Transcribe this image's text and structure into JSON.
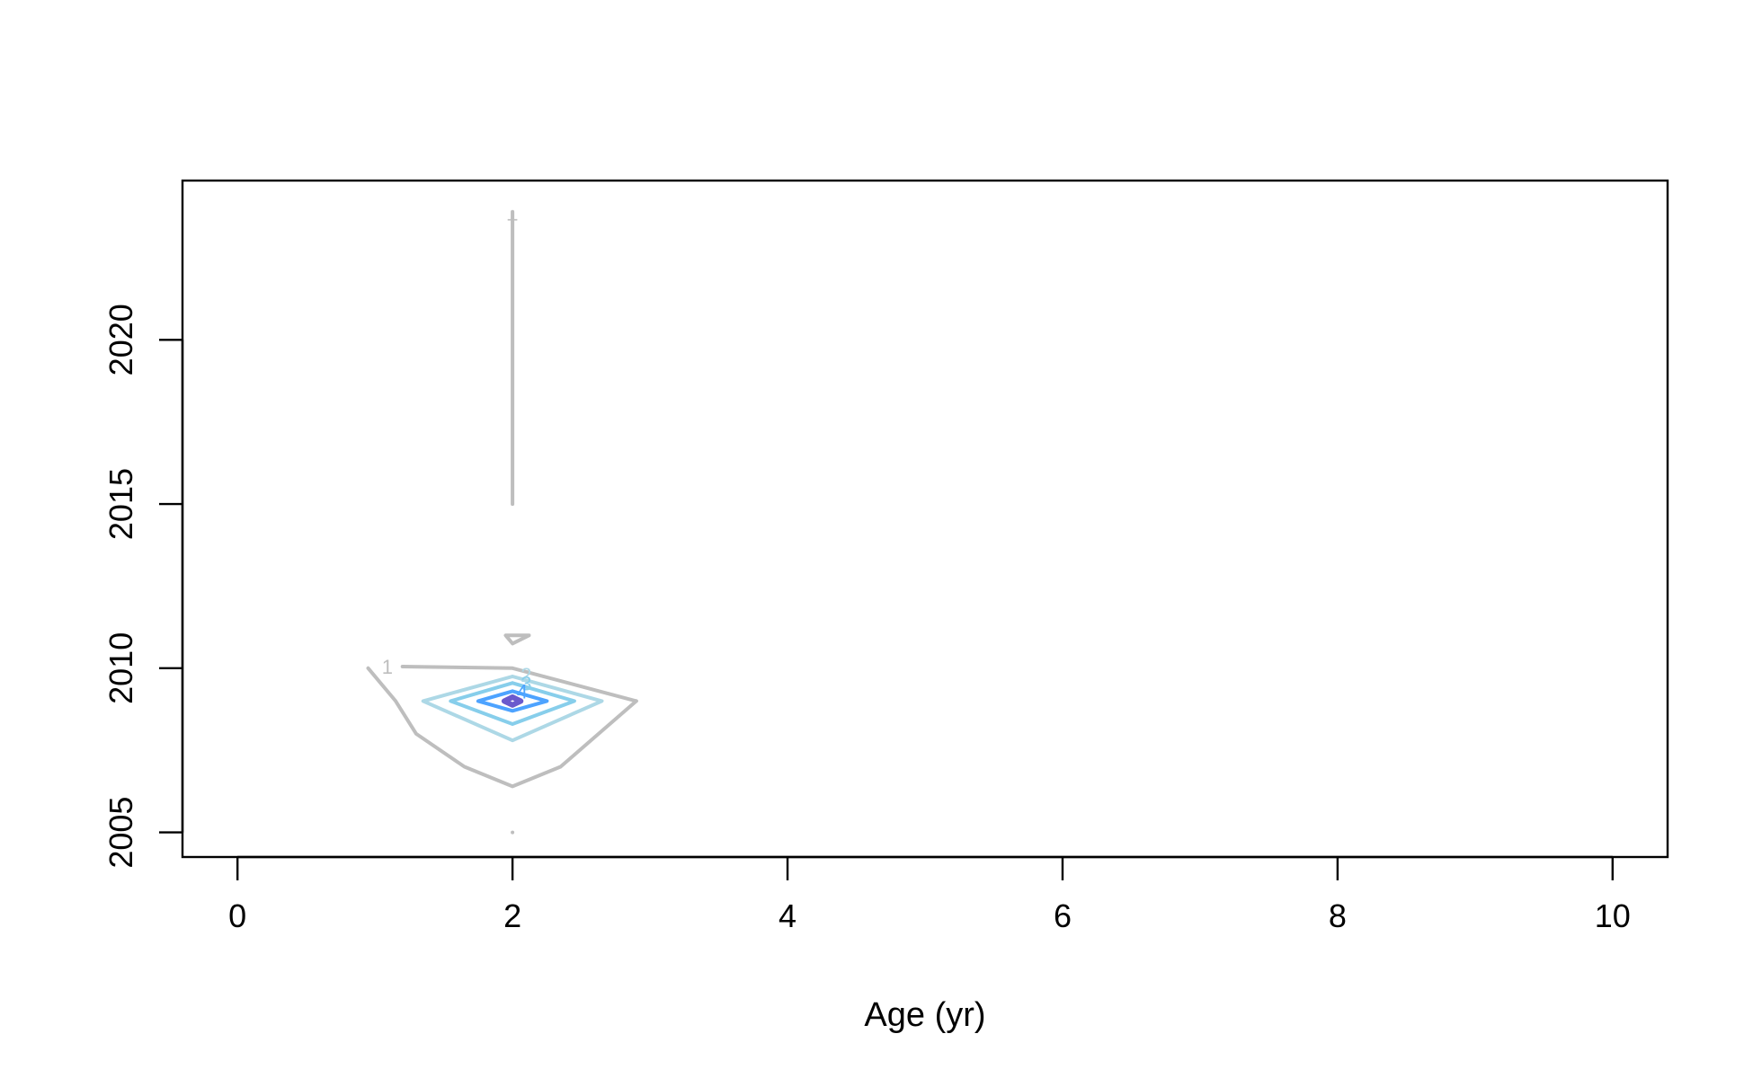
{
  "chart_data": {
    "type": "contour",
    "title": "",
    "xlabel": "Age (yr)",
    "ylabel": "",
    "xlim": [
      -0.4,
      10.4
    ],
    "ylim": [
      2004.25,
      2024.85
    ],
    "x_ticks": [
      0,
      2,
      4,
      6,
      8,
      10
    ],
    "y_ticks": [
      2005,
      2010,
      2015,
      2020
    ],
    "x_tick_labels": [
      "0",
      "2",
      "4",
      "6",
      "8",
      "10"
    ],
    "y_tick_labels": [
      "2005",
      "2010",
      "2015",
      "2020"
    ],
    "grid": false,
    "legend": "none",
    "contours": [
      {
        "level": 1,
        "label": "1",
        "color": "#bebebe",
        "lines": [
          [
            [
              2.9,
              2009.0
            ],
            [
              2.0,
              2010.0
            ],
            [
              1.2,
              2010.05
            ]
          ],
          [
            [
              0.95,
              2010.0
            ],
            [
              1.15,
              2009.0
            ],
            [
              1.3,
              2008.0
            ],
            [
              1.65,
              2007.0
            ],
            [
              2.0,
              2006.4
            ],
            [
              2.35,
              2007.0
            ],
            [
              2.9,
              2009.0
            ]
          ],
          [
            [
              2.0,
              2011.0
            ],
            [
              2.12,
              2011.0
            ],
            [
              2.0,
              2010.75
            ],
            [
              1.95,
              2011.0
            ],
            [
              2.0,
              2011.0
            ]
          ],
          [
            [
              2.0,
              2015.0
            ],
            [
              2.0,
              2023.9
            ]
          ],
          [
            [
              2.0,
              2005.0
            ],
            [
              2.0,
              2005.0
            ]
          ]
        ],
        "label_at": [
          1.09,
          2010.05
        ]
      },
      {
        "level": 2,
        "label": "2",
        "color": "#add8e6",
        "lines": [
          [
            [
              2.0,
              2009.75
            ],
            [
              2.65,
              2009.0
            ],
            [
              2.0,
              2007.8
            ],
            [
              1.35,
              2009.0
            ],
            [
              2.0,
              2009.75
            ]
          ]
        ],
        "label_at": [
          2.1,
          2009.8
        ]
      },
      {
        "level": 3,
        "label": "3",
        "color": "#87ceeb",
        "lines": [
          [
            [
              2.0,
              2009.55
            ],
            [
              2.45,
              2009.0
            ],
            [
              2.0,
              2008.3
            ],
            [
              1.55,
              2009.0
            ],
            [
              2.0,
              2009.55
            ]
          ]
        ],
        "label_at": [
          2.1,
          2009.55
        ]
      },
      {
        "level": 4,
        "label": "4",
        "color": "#4da3ff",
        "lines": [
          [
            [
              2.0,
              2009.3
            ],
            [
              2.25,
              2009.0
            ],
            [
              2.0,
              2008.7
            ],
            [
              1.75,
              2009.0
            ],
            [
              2.0,
              2009.3
            ]
          ]
        ],
        "label_at": [
          2.07,
          2009.3
        ]
      },
      {
        "level": 5,
        "label": "",
        "color": "#6a5acd",
        "lines": [
          [
            [
              2.0,
              2009.12
            ],
            [
              2.06,
              2009.0
            ],
            [
              2.0,
              2008.88
            ],
            [
              1.94,
              2009.0
            ],
            [
              2.0,
              2009.12
            ]
          ]
        ],
        "label_at": null
      }
    ],
    "annotations": [
      {
        "text": "+",
        "x": 2.0,
        "y": 2023.7,
        "color": "#bebebe"
      }
    ]
  }
}
